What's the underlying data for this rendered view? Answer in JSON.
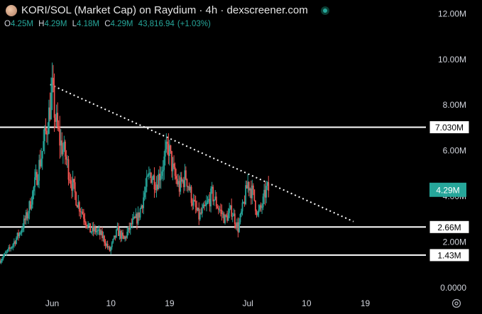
{
  "header": {
    "title": "KORI/SOL (Market Cap) on Raydium · 4h · dexscreener.com",
    "ohlc": [
      {
        "key": "O",
        "value": "4.25M"
      },
      {
        "key": "H",
        "value": "4.29M"
      },
      {
        "key": "L",
        "value": "4.18M"
      },
      {
        "key": "C",
        "value": "4.29M"
      }
    ],
    "volume": "43,816.94",
    "change": "(+1.03%)"
  },
  "colors": {
    "up": "#26a69a",
    "down": "#ef5350",
    "background": "#000000",
    "level_line": "#ffffff",
    "trendline": "#ffffff"
  },
  "icons": {
    "live": "status-dot-icon",
    "settings": "gear-icon"
  },
  "chart_data": {
    "type": "candlestick",
    "y_unit": "market cap (SOL)",
    "ylim": [
      0,
      12.6
    ],
    "y_ticks": [
      {
        "value": 12.0,
        "label": "12.00M"
      },
      {
        "value": 10.0,
        "label": "10.00M"
      },
      {
        "value": 8.0,
        "label": "8.00M"
      },
      {
        "value": 6.0,
        "label": "6.00M"
      },
      {
        "value": 4.0,
        "label": "4.00M"
      },
      {
        "value": 2.0,
        "label": "2.00M"
      },
      {
        "value": 0.0,
        "label": "0.0000"
      }
    ],
    "x_ticks": [
      {
        "day": 0,
        "label": "Jun"
      },
      {
        "day": 9,
        "label": "10"
      },
      {
        "day": 18,
        "label": "19"
      },
      {
        "day": 30,
        "label": "Jul"
      },
      {
        "day": 39,
        "label": "10"
      },
      {
        "day": 48,
        "label": "19"
      }
    ],
    "xlim_days": [
      -8.0,
      57.3
    ],
    "horizontal_levels": [
      {
        "value": 7.03,
        "label": "7.030M"
      },
      {
        "value": 2.66,
        "label": "2.66M"
      },
      {
        "value": 1.43,
        "label": "1.43M"
      }
    ],
    "trendline": {
      "from": {
        "day": -0.3,
        "value": 8.9
      },
      "to": {
        "day": 46.2,
        "value": 2.9
      }
    },
    "last_price": {
      "value": 4.29,
      "label": "4.29M"
    },
    "candle_anchors": [
      [
        -8.0,
        1.2
      ],
      [
        -6.5,
        1.7
      ],
      [
        -5.0,
        2.4
      ],
      [
        -3.8,
        3.2
      ],
      [
        -2.6,
        4.6
      ],
      [
        -1.5,
        6.0
      ],
      [
        -0.5,
        7.6
      ],
      [
        0.0,
        8.6
      ],
      [
        0.5,
        7.4
      ],
      [
        1.2,
        6.4
      ],
      [
        2.0,
        5.8
      ],
      [
        2.8,
        4.8
      ],
      [
        3.8,
        3.8
      ],
      [
        4.8,
        3.2
      ],
      [
        5.8,
        2.5
      ],
      [
        6.8,
        2.5
      ],
      [
        7.8,
        2.2
      ],
      [
        8.8,
        1.6
      ],
      [
        10.0,
        2.5
      ],
      [
        11.0,
        2.1
      ],
      [
        12.2,
        2.8
      ],
      [
        13.2,
        3.1
      ],
      [
        14.2,
        4.2
      ],
      [
        15.0,
        5.0
      ],
      [
        16.0,
        4.6
      ],
      [
        17.0,
        5.4
      ],
      [
        17.8,
        6.2
      ],
      [
        18.6,
        5.0
      ],
      [
        19.5,
        4.4
      ],
      [
        20.5,
        4.9
      ],
      [
        21.5,
        3.8
      ],
      [
        22.5,
        3.1
      ],
      [
        23.5,
        3.5
      ],
      [
        24.5,
        4.1
      ],
      [
        25.5,
        3.5
      ],
      [
        26.5,
        3.0
      ],
      [
        27.5,
        3.4
      ],
      [
        28.5,
        2.6
      ],
      [
        29.3,
        3.6
      ],
      [
        30.0,
        4.6
      ],
      [
        30.8,
        4.1
      ],
      [
        31.5,
        3.2
      ],
      [
        32.2,
        3.6
      ],
      [
        32.8,
        4.3
      ],
      [
        33.3,
        4.29
      ]
    ]
  }
}
